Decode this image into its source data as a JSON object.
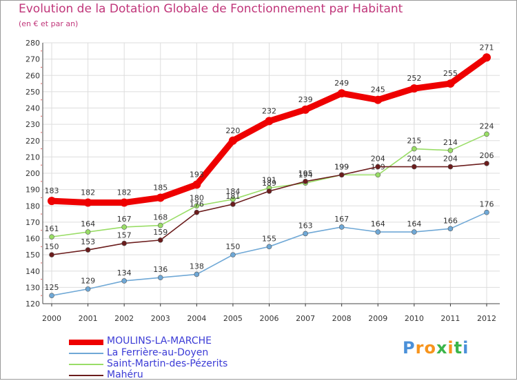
{
  "chart_data": {
    "type": "line",
    "title": "Evolution de la Dotation Globale de Fonctionnement par Habitant",
    "subtitle": "(en € et par an)",
    "x": [
      "2000",
      "2001",
      "2002",
      "2003",
      "2004",
      "2005",
      "2006",
      "2007",
      "2008",
      "2009",
      "2010",
      "2011",
      "2012"
    ],
    "ylim": [
      120,
      280
    ],
    "yticks": [
      120,
      130,
      140,
      150,
      160,
      170,
      180,
      190,
      200,
      210,
      220,
      230,
      240,
      250,
      260,
      270,
      280
    ],
    "grid": true,
    "legend_position": "bottom-left",
    "series": [
      {
        "name": "MOULINS-LA-MARCHE",
        "color": "#ee0000",
        "values": [
          183,
          182,
          182,
          185,
          193,
          220,
          232,
          239,
          249,
          245,
          252,
          255,
          271
        ]
      },
      {
        "name": "La Ferrière-au-Doyen",
        "color": "#6fa8d6",
        "values": [
          125,
          129,
          134,
          136,
          138,
          150,
          155,
          163,
          167,
          164,
          164,
          166,
          176
        ]
      },
      {
        "name": "Saint-Martin-des-Pézerits",
        "color": "#99dd66",
        "values": [
          161,
          164,
          167,
          168,
          180,
          184,
          191,
          194,
          199,
          199,
          215,
          214,
          224
        ]
      },
      {
        "name": "Mahéru",
        "color": "#6b1c1c",
        "values": [
          150,
          153,
          157,
          159,
          176,
          181,
          189,
          195,
          199,
          204,
          204,
          204,
          206
        ]
      }
    ]
  },
  "logo": {
    "text": "Proxiti",
    "letters": [
      "P",
      "r",
      "o",
      "x",
      "i",
      "t",
      "i"
    ],
    "colors": [
      "#4a90d9",
      "#f7941d",
      "#f7941d",
      "#3bb54a",
      "#f7941d",
      "#3bb54a",
      "#4a90d9"
    ]
  }
}
